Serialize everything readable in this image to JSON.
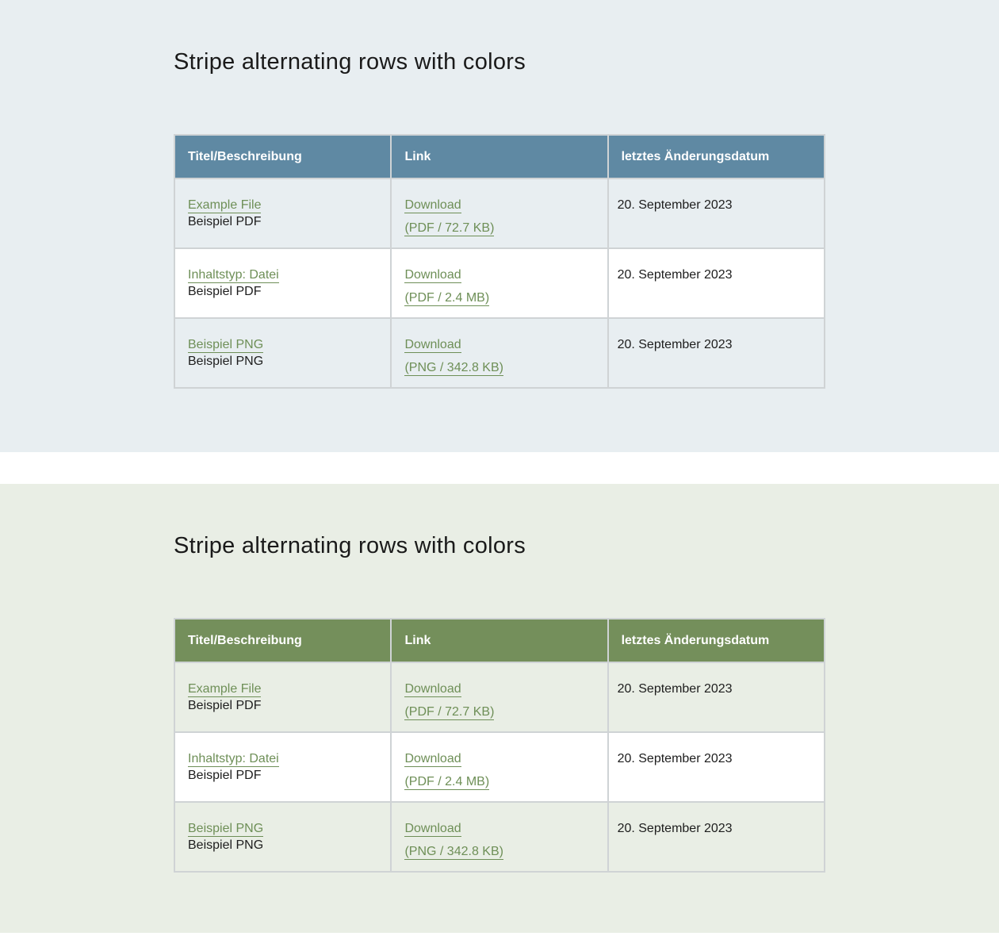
{
  "sections": [
    {
      "title": "Stripe alternating rows with colors",
      "header_color": "#5f89a3",
      "background": "#e8eef1"
    },
    {
      "title": "Stripe alternating rows with colors",
      "header_color": "#748f5b",
      "background": "#e9eee5"
    }
  ],
  "table": {
    "headers": [
      "Titel/Beschreibung",
      "Link",
      "letztes Änderungsdatum"
    ],
    "rows": [
      {
        "title": "Example File",
        "desc": "Beispiel PDF",
        "link": "Download",
        "size": "(PDF / 72.7 KB)",
        "date": "20. September 2023"
      },
      {
        "title": "Inhaltstyp: Datei",
        "desc": "Beispiel PDF",
        "link": "Download",
        "size": "(PDF / 2.4 MB)",
        "date": "20. September 2023"
      },
      {
        "title": "Beispiel PNG",
        "desc": "Beispiel PNG",
        "link": "Download",
        "size": "(PNG / 342.8 KB)",
        "date": "20. September 2023"
      }
    ]
  },
  "link_color": "#6e8f57"
}
